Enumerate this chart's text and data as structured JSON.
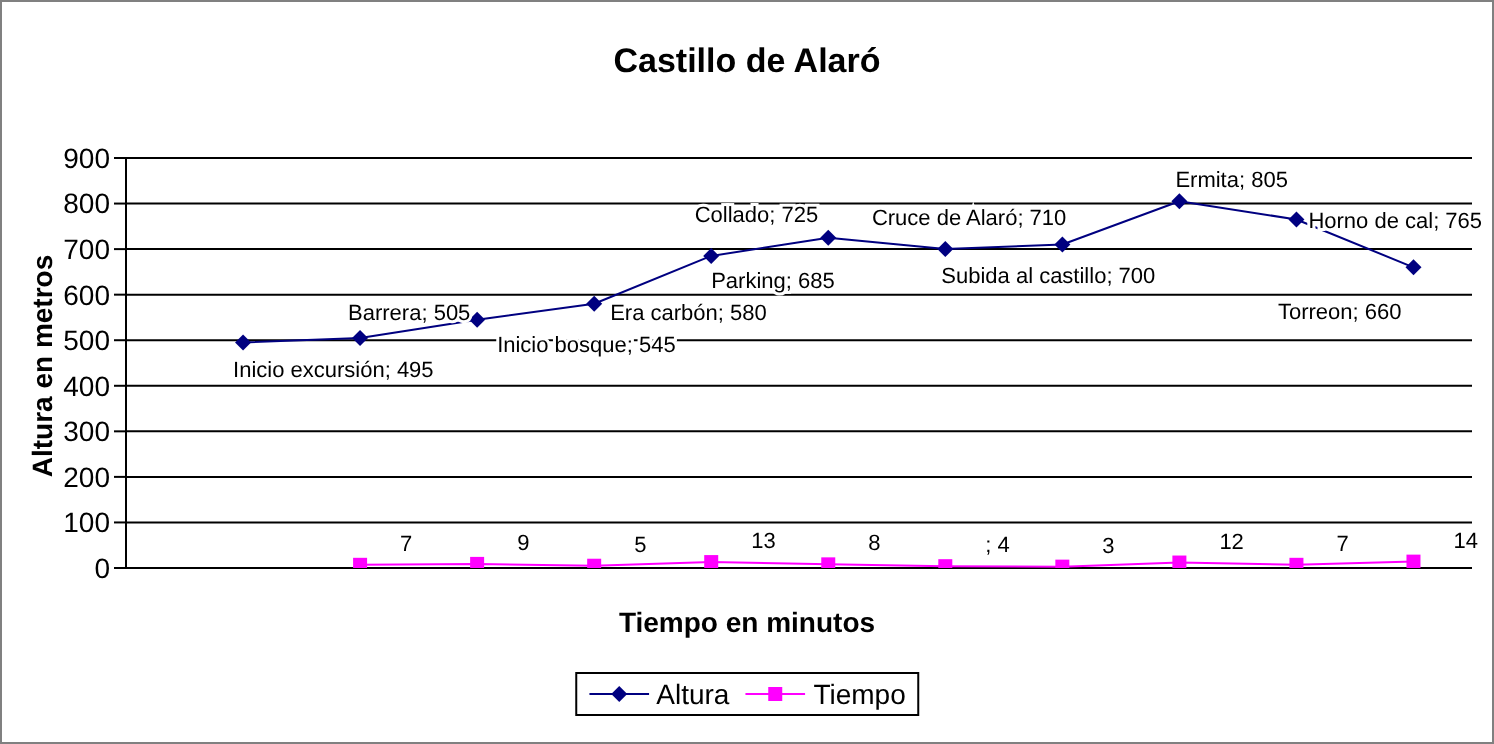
{
  "chart_data": {
    "type": "line",
    "title": "Castillo de Alaró",
    "xlabel": "Tiempo en minutos",
    "ylabel": "Altura en metros",
    "categories": [
      null,
      null,
      null,
      null,
      null,
      null,
      null,
      null,
      null,
      null,
      null
    ],
    "series": [
      {
        "name": "Altura",
        "color": "#000080",
        "marker": "diamond",
        "values": [
          495,
          505,
          545,
          580,
          685,
          725,
          700,
          710,
          805,
          765,
          660
        ],
        "value_labels": [
          "Inicio excursión; 495",
          "Barrera; 505",
          "Inicio bosque; 545",
          "Era carbón; 580",
          "Parking; 685",
          "Collado; 725",
          "Subida al castillo; 700",
          "Cruce de Alaró; 710",
          "Ermita; 805",
          "Horno de cal; 765",
          "Torreon; 660"
        ]
      },
      {
        "name": "Tiempo",
        "color": "#ff00ff",
        "marker": "square",
        "values": [
          null,
          7,
          9,
          5,
          13,
          8,
          4,
          3,
          12,
          7,
          14
        ],
        "value_labels": [
          null,
          "7",
          "9",
          "5",
          "13",
          "8",
          "; 4",
          "3",
          "12",
          "7",
          "14"
        ]
      }
    ],
    "ylim": [
      0,
      900
    ],
    "yticks": [
      0,
      100,
      200,
      300,
      400,
      500,
      600,
      700,
      800,
      900
    ],
    "grid": "y",
    "legend": "bottom"
  }
}
